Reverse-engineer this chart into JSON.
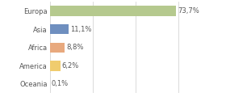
{
  "categories": [
    "Europa",
    "Asia",
    "Africa",
    "America",
    "Oceania"
  ],
  "values": [
    73.7,
    11.1,
    8.8,
    6.2,
    0.1
  ],
  "labels": [
    "73,7%",
    "11,1%",
    "8,8%",
    "6,2%",
    "0,1%"
  ],
  "bar_colors": [
    "#b5c98e",
    "#6f8fbf",
    "#e8a97e",
    "#f0cc6e",
    "#f5c5a3"
  ],
  "background_color": "#ffffff",
  "label_fontsize": 6.0,
  "category_fontsize": 6.0,
  "xlim": [
    0,
    100
  ],
  "grid_ticks": [
    0,
    25,
    50,
    75,
    100
  ],
  "grid_color": "#cccccc",
  "text_color": "#555555"
}
